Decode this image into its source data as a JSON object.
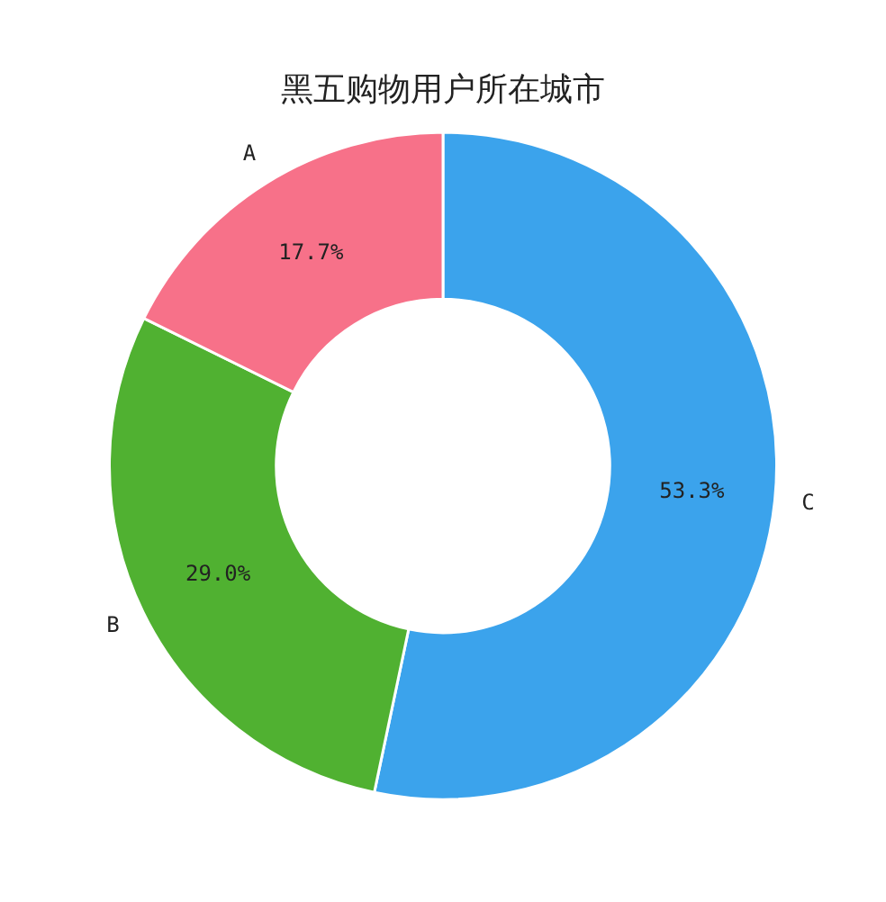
{
  "chart_data": {
    "type": "donut",
    "title": "黑五购物用户所在城市",
    "categories": [
      "A",
      "B",
      "C"
    ],
    "values": [
      17.7,
      29.0,
      53.3
    ],
    "value_labels": [
      "17.7%",
      "29.0%",
      "53.3%"
    ],
    "colors": [
      "#f77189",
      "#50b131",
      "#3ba3ec"
    ]
  }
}
